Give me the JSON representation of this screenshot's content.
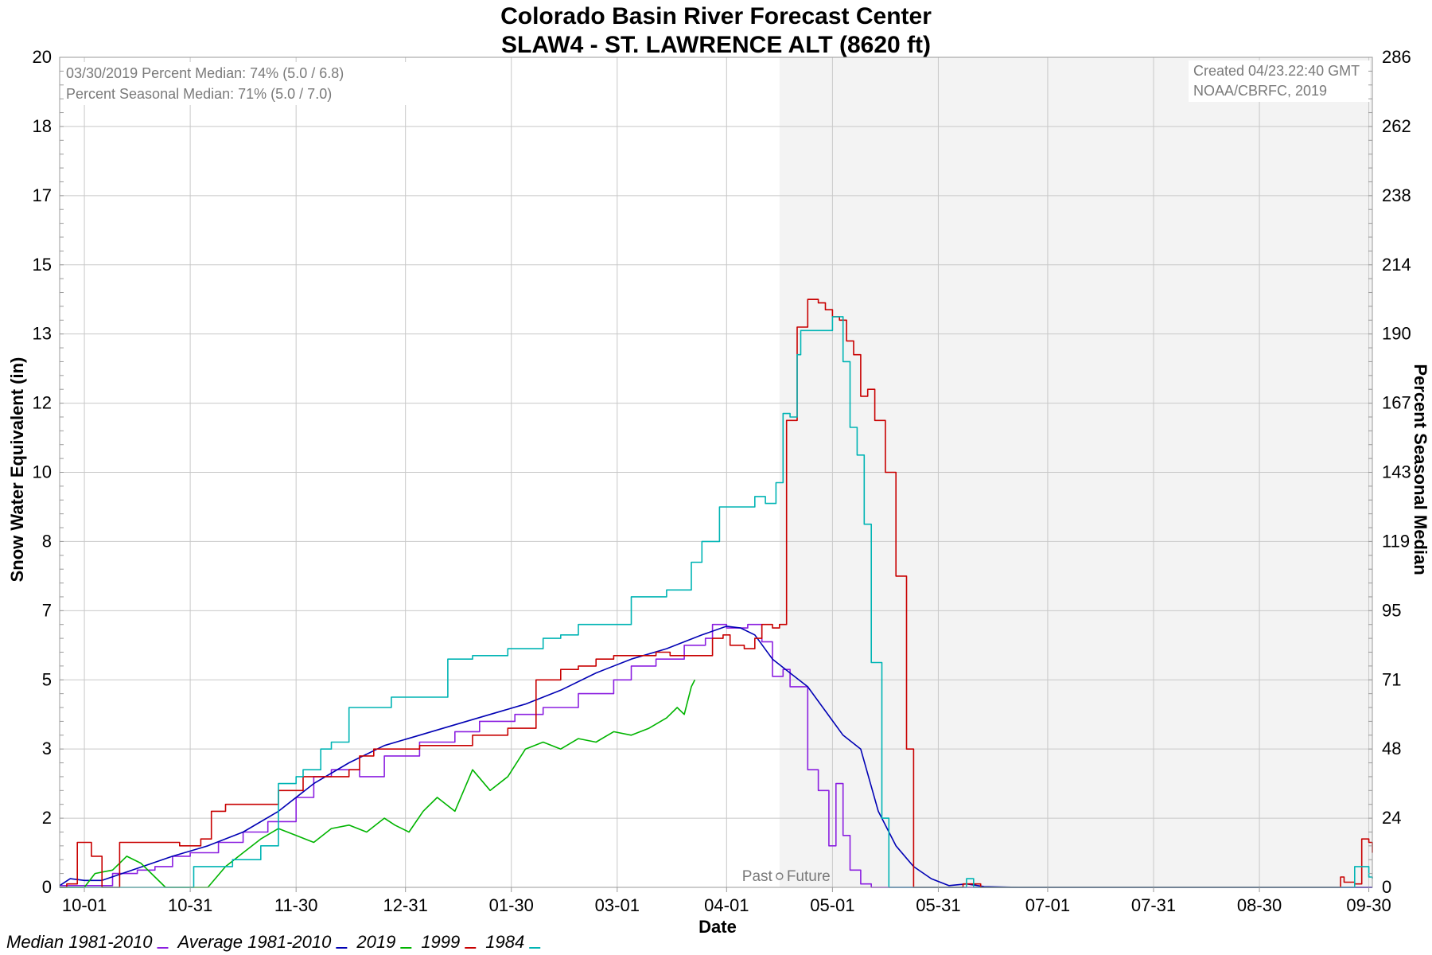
{
  "chart_data": {
    "type": "line",
    "title": "Colorado Basin River Forecast Center",
    "subtitle": "SLAW4 - ST. LAWRENCE ALT (8620 ft)",
    "xlabel": "Date",
    "ylabel": "Snow Water Equivalent (in)",
    "y2label": "Percent Seasonal Median",
    "x_ticks": [
      "10-01",
      "10-31",
      "11-30",
      "12-31",
      "01-30",
      "03-01",
      "04-01",
      "05-01",
      "05-31",
      "07-01",
      "07-31",
      "08-30",
      "09-30"
    ],
    "x_tick_days": [
      0,
      30,
      60,
      91,
      121,
      151,
      182,
      212,
      242,
      273,
      303,
      333,
      364
    ],
    "y_ticks": [
      0,
      2,
      3,
      5,
      7,
      8,
      10,
      12,
      13,
      15,
      17,
      18,
      20
    ],
    "y2_ticks": [
      0,
      24,
      48,
      71,
      95,
      119,
      143,
      167,
      190,
      214,
      238,
      262,
      286
    ],
    "xlim": [
      -7,
      365
    ],
    "ylim": [
      0,
      20
    ],
    "grid": true,
    "forecast_start_day": 197,
    "forecast_labels": {
      "past": "Past",
      "future": "Future"
    },
    "info_left": [
      "03/30/2019 Percent Median: 74% (5.0 / 6.8)",
      "Percent Seasonal Median: 71% (5.0 / 7.0)"
    ],
    "info_right": [
      "Created 04/23.22:40 GMT",
      "NOAA/CBRFC, 2019"
    ],
    "legend_position": "bottom-left",
    "series": [
      {
        "name": "Median 1981-2010",
        "color": "#8b1fe0",
        "style": "step",
        "points": [
          [
            -7,
            0.05
          ],
          [
            5,
            0.05
          ],
          [
            8,
            0.4
          ],
          [
            15,
            0.5
          ],
          [
            20,
            0.6
          ],
          [
            25,
            0.9
          ],
          [
            30,
            1.0
          ],
          [
            38,
            1.3
          ],
          [
            45,
            1.6
          ],
          [
            52,
            1.9
          ],
          [
            60,
            2.3
          ],
          [
            65,
            2.6
          ],
          [
            70,
            2.7
          ],
          [
            78,
            2.6
          ],
          [
            85,
            2.9
          ],
          [
            95,
            3.2
          ],
          [
            105,
            3.5
          ],
          [
            112,
            3.8
          ],
          [
            122,
            4.0
          ],
          [
            130,
            4.2
          ],
          [
            140,
            4.6
          ],
          [
            150,
            5.0
          ],
          [
            155,
            5.4
          ],
          [
            162,
            5.6
          ],
          [
            170,
            6.0
          ],
          [
            176,
            6.2
          ],
          [
            178,
            6.6
          ],
          [
            182,
            6.5
          ],
          [
            188,
            6.6
          ],
          [
            192,
            6.1
          ],
          [
            195,
            5.1
          ],
          [
            198,
            5.3
          ],
          [
            200,
            4.8
          ],
          [
            205,
            2.7
          ],
          [
            208,
            2.4
          ],
          [
            211,
            1.2
          ],
          [
            213,
            2.5
          ],
          [
            215,
            1.5
          ],
          [
            217,
            0.5
          ],
          [
            220,
            0.1
          ],
          [
            223,
            0.0
          ],
          [
            365,
            0.0
          ]
        ]
      },
      {
        "name": "Average 1981-2010",
        "color": "#0000b4",
        "style": "line",
        "points": [
          [
            -7,
            0.05
          ],
          [
            -4,
            0.25
          ],
          [
            0,
            0.2
          ],
          [
            5,
            0.2
          ],
          [
            15,
            0.55
          ],
          [
            25,
            0.9
          ],
          [
            35,
            1.2
          ],
          [
            45,
            1.6
          ],
          [
            55,
            2.1
          ],
          [
            65,
            2.5
          ],
          [
            75,
            2.8
          ],
          [
            85,
            3.1
          ],
          [
            95,
            3.4
          ],
          [
            105,
            3.7
          ],
          [
            115,
            4.0
          ],
          [
            125,
            4.3
          ],
          [
            135,
            4.7
          ],
          [
            145,
            5.2
          ],
          [
            155,
            5.6
          ],
          [
            165,
            5.9
          ],
          [
            175,
            6.3
          ],
          [
            182,
            6.55
          ],
          [
            186,
            6.5
          ],
          [
            190,
            6.3
          ],
          [
            195,
            5.6
          ],
          [
            200,
            5.2
          ],
          [
            205,
            4.8
          ],
          [
            210,
            4.1
          ],
          [
            215,
            3.4
          ],
          [
            220,
            3.0
          ],
          [
            225,
            2.1
          ],
          [
            230,
            1.2
          ],
          [
            235,
            0.6
          ],
          [
            240,
            0.25
          ],
          [
            245,
            0.05
          ],
          [
            250,
            0.1
          ],
          [
            255,
            0.02
          ],
          [
            265,
            0.0
          ],
          [
            365,
            0.0
          ]
        ]
      },
      {
        "name": "2019",
        "color": "#00b400",
        "style": "line",
        "points": [
          [
            -7,
            0.0
          ],
          [
            0,
            0.0
          ],
          [
            3,
            0.4
          ],
          [
            8,
            0.5
          ],
          [
            12,
            0.9
          ],
          [
            16,
            0.7
          ],
          [
            20,
            0.3
          ],
          [
            23,
            0.0
          ],
          [
            35,
            0.0
          ],
          [
            40,
            0.6
          ],
          [
            45,
            1.0
          ],
          [
            50,
            1.4
          ],
          [
            55,
            1.7
          ],
          [
            60,
            1.5
          ],
          [
            65,
            1.3
          ],
          [
            70,
            1.7
          ],
          [
            75,
            1.8
          ],
          [
            80,
            1.6
          ],
          [
            85,
            2.0
          ],
          [
            88,
            1.8
          ],
          [
            92,
            1.6
          ],
          [
            96,
            2.1
          ],
          [
            100,
            2.3
          ],
          [
            105,
            2.1
          ],
          [
            110,
            2.7
          ],
          [
            115,
            2.4
          ],
          [
            120,
            2.6
          ],
          [
            125,
            3.0
          ],
          [
            130,
            3.2
          ],
          [
            135,
            3.0
          ],
          [
            140,
            3.3
          ],
          [
            145,
            3.2
          ],
          [
            150,
            3.5
          ],
          [
            155,
            3.4
          ],
          [
            160,
            3.6
          ],
          [
            165,
            3.9
          ],
          [
            168,
            4.2
          ],
          [
            170,
            4.0
          ],
          [
            172,
            4.8
          ],
          [
            173,
            5.0
          ]
        ]
      },
      {
        "name": "1999",
        "color": "#c80000",
        "style": "step",
        "points": [
          [
            -7,
            0.0
          ],
          [
            -5,
            0.1
          ],
          [
            -2,
            1.3
          ],
          [
            2,
            0.9
          ],
          [
            5,
            0.0
          ],
          [
            9,
            0.0
          ],
          [
            10,
            1.3
          ],
          [
            15,
            1.3
          ],
          [
            20,
            1.3
          ],
          [
            27,
            1.2
          ],
          [
            30,
            1.2
          ],
          [
            33,
            1.4
          ],
          [
            36,
            2.1
          ],
          [
            40,
            2.2
          ],
          [
            45,
            2.2
          ],
          [
            52,
            2.2
          ],
          [
            55,
            2.4
          ],
          [
            60,
            2.4
          ],
          [
            62,
            2.6
          ],
          [
            65,
            2.6
          ],
          [
            70,
            2.6
          ],
          [
            75,
            2.7
          ],
          [
            78,
            2.9
          ],
          [
            82,
            3.0
          ],
          [
            90,
            3.0
          ],
          [
            95,
            3.1
          ],
          [
            105,
            3.1
          ],
          [
            110,
            3.4
          ],
          [
            115,
            3.4
          ],
          [
            120,
            3.6
          ],
          [
            125,
            3.6
          ],
          [
            128,
            5.0
          ],
          [
            130,
            5.0
          ],
          [
            135,
            5.3
          ],
          [
            140,
            5.4
          ],
          [
            145,
            5.6
          ],
          [
            150,
            5.7
          ],
          [
            158,
            5.7
          ],
          [
            162,
            5.8
          ],
          [
            166,
            5.7
          ],
          [
            172,
            5.7
          ],
          [
            178,
            6.2
          ],
          [
            181,
            6.3
          ],
          [
            183,
            6.0
          ],
          [
            187,
            5.9
          ],
          [
            190,
            6.2
          ],
          [
            192,
            6.6
          ],
          [
            195,
            6.5
          ],
          [
            197,
            6.6
          ],
          [
            198,
            6.6
          ],
          [
            199,
            11.5
          ],
          [
            202,
            13.2
          ],
          [
            205,
            14.0
          ],
          [
            208,
            13.9
          ],
          [
            210,
            13.7
          ],
          [
            212,
            13.5
          ],
          [
            214,
            13.4
          ],
          [
            216,
            12.9
          ],
          [
            218,
            12.7
          ],
          [
            220,
            12.1
          ],
          [
            222,
            12.2
          ],
          [
            224,
            11.5
          ],
          [
            227,
            10.0
          ],
          [
            230,
            7.5
          ],
          [
            233,
            3.0
          ],
          [
            235,
            0.0
          ],
          [
            245,
            0.0
          ],
          [
            249,
            0.1
          ],
          [
            254,
            0.0
          ],
          [
            355,
            0.0
          ],
          [
            356,
            0.3
          ],
          [
            357,
            0.15
          ],
          [
            360,
            0.1
          ],
          [
            362,
            1.4
          ],
          [
            364,
            1.3
          ],
          [
            365,
            1.0
          ]
        ]
      },
      {
        "name": "1984",
        "color": "#00b4b4",
        "style": "step",
        "points": [
          [
            -7,
            0.0
          ],
          [
            28,
            0.0
          ],
          [
            31,
            0.6
          ],
          [
            35,
            0.6
          ],
          [
            42,
            0.8
          ],
          [
            50,
            1.2
          ],
          [
            55,
            2.5
          ],
          [
            60,
            2.6
          ],
          [
            62,
            2.7
          ],
          [
            67,
            3.0
          ],
          [
            70,
            3.2
          ],
          [
            75,
            4.2
          ],
          [
            80,
            4.2
          ],
          [
            87,
            4.5
          ],
          [
            95,
            4.5
          ],
          [
            103,
            5.6
          ],
          [
            110,
            5.7
          ],
          [
            120,
            5.9
          ],
          [
            125,
            5.9
          ],
          [
            130,
            6.2
          ],
          [
            135,
            6.3
          ],
          [
            140,
            6.6
          ],
          [
            150,
            6.6
          ],
          [
            155,
            7.2
          ],
          [
            165,
            7.3
          ],
          [
            172,
            7.7
          ],
          [
            175,
            8.0
          ],
          [
            180,
            9.0
          ],
          [
            190,
            9.3
          ],
          [
            193,
            9.1
          ],
          [
            196,
            9.7
          ],
          [
            198,
            11.7
          ],
          [
            200,
            11.6
          ],
          [
            202,
            12.7
          ],
          [
            203,
            13.1
          ],
          [
            210,
            13.1
          ],
          [
            212,
            13.5
          ],
          [
            215,
            12.6
          ],
          [
            217,
            11.3
          ],
          [
            219,
            10.5
          ],
          [
            221,
            8.5
          ],
          [
            223,
            5.5
          ],
          [
            226,
            2.0
          ],
          [
            228,
            0.0
          ],
          [
            248,
            0.0
          ],
          [
            250,
            0.25
          ],
          [
            252,
            0.0
          ],
          [
            355,
            0.0
          ],
          [
            360,
            0.6
          ],
          [
            364,
            0.3
          ],
          [
            365,
            0.25
          ]
        ]
      }
    ]
  }
}
